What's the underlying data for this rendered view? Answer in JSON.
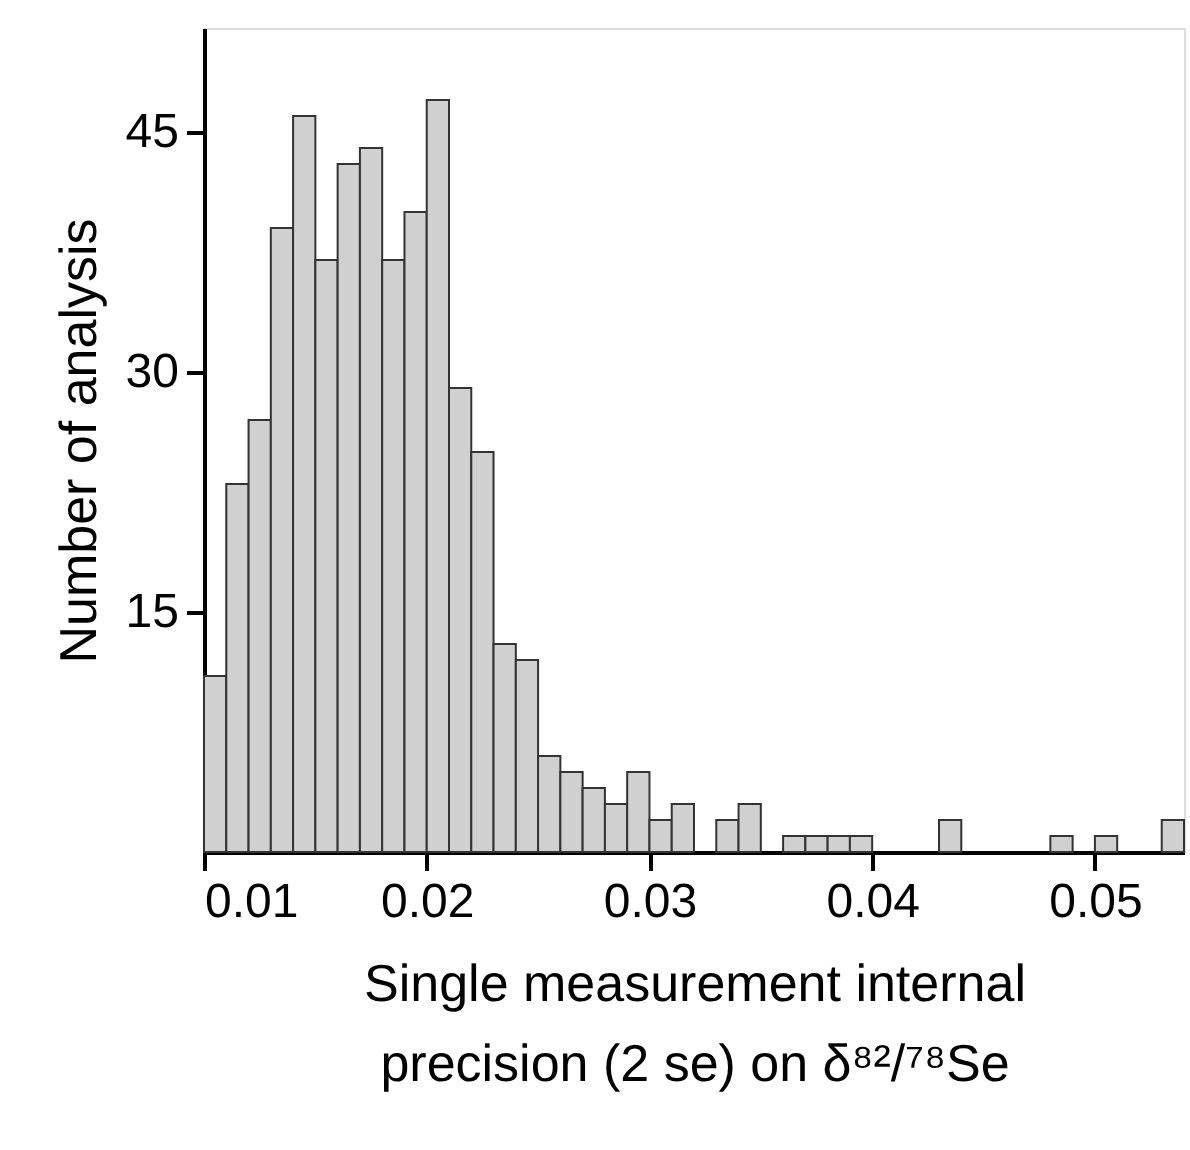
{
  "chart_data": {
    "type": "histogram",
    "xlabel": "Single measurement internal\nprecision (2 se) on δ⁸²/⁷⁸Se",
    "ylabel": "Number of analysis",
    "bins": [
      0.01,
      0.011,
      0.012,
      0.013,
      0.014,
      0.015,
      0.016,
      0.017,
      0.018,
      0.019,
      0.02,
      0.021,
      0.022,
      0.023,
      0.024,
      0.025,
      0.026,
      0.027,
      0.028,
      0.029,
      0.03,
      0.031,
      0.032,
      0.033,
      0.034,
      0.035,
      0.036,
      0.037,
      0.038,
      0.039,
      0.04,
      0.041,
      0.042,
      0.043,
      0.044,
      0.045,
      0.046,
      0.047,
      0.048,
      0.049,
      0.05,
      0.051,
      0.052,
      0.053,
      0.054
    ],
    "values": [
      11,
      23,
      27,
      39,
      46,
      37,
      43,
      44,
      37,
      40,
      47,
      29,
      25,
      13,
      12,
      6,
      5,
      4,
      3,
      5,
      2,
      3,
      0,
      2,
      3,
      0,
      1,
      1,
      1,
      1,
      0,
      0,
      0,
      2,
      0,
      0,
      0,
      0,
      1,
      0,
      1,
      0,
      0,
      2
    ],
    "color": "#d0d0d0",
    "xlim": [
      0.01,
      0.054
    ],
    "xticks": [
      0.01,
      0.02,
      0.03,
      0.04,
      0.05
    ],
    "ylim": [
      0,
      51.5
    ],
    "yticks": [
      15,
      30,
      45
    ],
    "grid": false,
    "legend": false
  }
}
